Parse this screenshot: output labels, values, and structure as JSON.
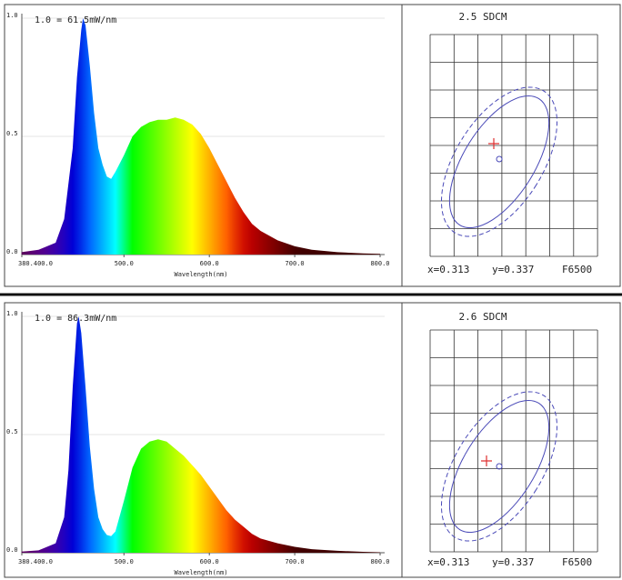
{
  "chart_data": [
    {
      "type": "area",
      "annotation": "1.0 = 61.5mW/nm",
      "xlabel": "Wavelength(nm)",
      "x": [
        380,
        400,
        420,
        430,
        440,
        445,
        450,
        452,
        455,
        460,
        465,
        470,
        475,
        480,
        485,
        490,
        500,
        510,
        520,
        530,
        540,
        550,
        560,
        570,
        580,
        590,
        600,
        610,
        620,
        630,
        640,
        650,
        660,
        680,
        700,
        720,
        750,
        780,
        800
      ],
      "values": [
        0.01,
        0.02,
        0.05,
        0.15,
        0.45,
        0.75,
        0.95,
        1.0,
        0.97,
        0.8,
        0.6,
        0.45,
        0.38,
        0.33,
        0.32,
        0.35,
        0.42,
        0.5,
        0.54,
        0.56,
        0.57,
        0.57,
        0.58,
        0.57,
        0.55,
        0.51,
        0.45,
        0.38,
        0.31,
        0.24,
        0.18,
        0.13,
        0.1,
        0.06,
        0.035,
        0.02,
        0.01,
        0.005,
        0.003
      ],
      "xlim": [
        380.4,
        800
      ],
      "xticks": [
        {
          "value": 380.4,
          "label": "380.400.0"
        },
        {
          "value": 500,
          "label": "500.0"
        },
        {
          "value": 600,
          "label": "600.0"
        },
        {
          "value": 700,
          "label": "700.0"
        },
        {
          "value": 800,
          "label": "800.0"
        }
      ],
      "ylim": [
        0,
        1
      ],
      "yticks": [
        {
          "value": 0,
          "label": "0.0"
        },
        {
          "value": 0.5,
          "label": "0.5"
        },
        {
          "value": 1,
          "label": "1.0"
        }
      ],
      "grid": true
    },
    {
      "type": "area",
      "annotation": "1.0 = 86.3mW/nm",
      "xlabel": "Wavelength(nm)",
      "x": [
        380,
        400,
        420,
        430,
        435,
        440,
        445,
        447,
        450,
        455,
        460,
        465,
        470,
        475,
        480,
        485,
        490,
        500,
        510,
        520,
        530,
        540,
        550,
        560,
        570,
        580,
        590,
        600,
        610,
        620,
        630,
        640,
        650,
        660,
        680,
        700,
        720,
        750,
        780,
        800
      ],
      "values": [
        0.005,
        0.01,
        0.04,
        0.15,
        0.35,
        0.7,
        0.97,
        1.0,
        0.93,
        0.7,
        0.45,
        0.27,
        0.15,
        0.1,
        0.075,
        0.07,
        0.09,
        0.22,
        0.36,
        0.44,
        0.47,
        0.48,
        0.47,
        0.44,
        0.41,
        0.37,
        0.33,
        0.28,
        0.23,
        0.18,
        0.14,
        0.11,
        0.08,
        0.06,
        0.04,
        0.025,
        0.015,
        0.008,
        0.004,
        0.002
      ],
      "xlim": [
        380.4,
        800
      ],
      "xticks": [
        {
          "value": 380.4,
          "label": "380.400.0"
        },
        {
          "value": 500,
          "label": "500.0"
        },
        {
          "value": 600,
          "label": "600.0"
        },
        {
          "value": 700,
          "label": "700.0"
        },
        {
          "value": 800,
          "label": "800.0"
        }
      ],
      "ylim": [
        0,
        1
      ],
      "yticks": [
        {
          "value": 0,
          "label": "0.0"
        },
        {
          "value": 0.5,
          "label": "0.5"
        },
        {
          "value": 1,
          "label": "1.0"
        }
      ],
      "grid": true
    }
  ],
  "sdcm": [
    {
      "title": "2.5 SDCM",
      "x_coord": "x=0.313",
      "y_coord": "y=0.337",
      "reference": "F6500"
    },
    {
      "title": "2.6 SDCM",
      "x_coord": "x=0.313",
      "y_coord": "y=0.337",
      "reference": "F6500"
    }
  ]
}
